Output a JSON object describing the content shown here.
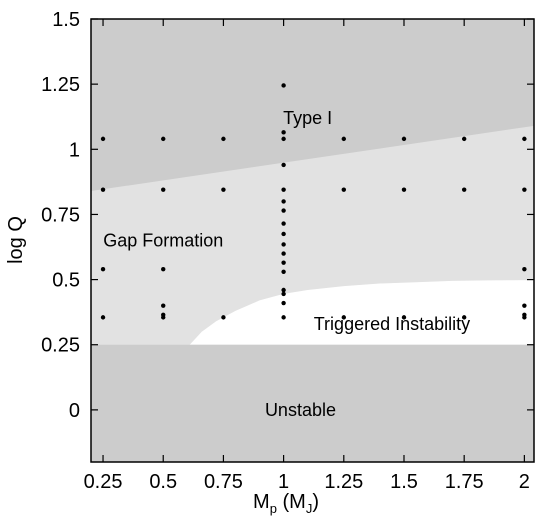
{
  "chart_data": {
    "type": "scatter",
    "title": "",
    "xlabel": {
      "main": "M",
      "sub": "p",
      "mid": " (M",
      "sub2": "J",
      "end": ")"
    },
    "ylabel": "log Q",
    "xlim": [
      0.2,
      2.04
    ],
    "ylim": [
      -0.2,
      1.5
    ],
    "xticks": [
      0.25,
      0.5,
      0.75,
      1,
      1.25,
      1.5,
      1.75,
      2
    ],
    "xtick_labels": [
      "0.25",
      "0.5",
      "0.75",
      "1",
      "1.25",
      "1.5",
      "1.75",
      "2"
    ],
    "yticks": [
      0,
      0.25,
      0.5,
      0.75,
      1,
      1.25,
      1.5
    ],
    "ytick_labels": [
      "0",
      "0.25",
      "0.5",
      "0.75",
      "1",
      "1.25",
      "1.5"
    ],
    "grid": false,
    "regions": [
      {
        "name": "Type I",
        "label_at": [
          1.1,
          1.12
        ],
        "color": "#cccccc"
      },
      {
        "name": "Gap Formation",
        "label_at": [
          0.5,
          0.65
        ],
        "color": "#e2e2e2"
      },
      {
        "name": "Triggered Instability",
        "label_at": [
          1.45,
          0.33
        ],
        "color": "#ffffff"
      },
      {
        "name": "Unstable",
        "label_at": [
          1.07,
          0.0
        ],
        "color": "#cccccc"
      }
    ],
    "boundaries": {
      "type_i_gap_line": {
        "x": [
          0.2,
          2.04
        ],
        "y": [
          0.84,
          1.09
        ]
      },
      "unstable_top": 0.25,
      "instability_curve": {
        "x": [
          0.61,
          0.66,
          0.72,
          0.8,
          0.9,
          1.0,
          1.1,
          1.25,
          1.4,
          1.55,
          1.7,
          1.85,
          2.04
        ],
        "y": [
          0.25,
          0.3,
          0.34,
          0.38,
          0.42,
          0.445,
          0.46,
          0.475,
          0.485,
          0.49,
          0.495,
          0.497,
          0.498
        ]
      }
    },
    "points": [
      {
        "x": 0.25,
        "y": 1.04
      },
      {
        "x": 0.5,
        "y": 1.04
      },
      {
        "x": 0.75,
        "y": 1.04
      },
      {
        "x": 1,
        "y": 1.04
      },
      {
        "x": 1.25,
        "y": 1.04
      },
      {
        "x": 1.5,
        "y": 1.04
      },
      {
        "x": 1.75,
        "y": 1.04
      },
      {
        "x": 2,
        "y": 1.04
      },
      {
        "x": 0.25,
        "y": 0.845
      },
      {
        "x": 0.5,
        "y": 0.845
      },
      {
        "x": 0.75,
        "y": 0.845
      },
      {
        "x": 1,
        "y": 0.845
      },
      {
        "x": 1.25,
        "y": 0.845
      },
      {
        "x": 1.5,
        "y": 0.845
      },
      {
        "x": 1.75,
        "y": 0.845
      },
      {
        "x": 2,
        "y": 0.845
      },
      {
        "x": 0.25,
        "y": 0.54
      },
      {
        "x": 0.5,
        "y": 0.54
      },
      {
        "x": 2,
        "y": 0.54
      },
      {
        "x": 0.5,
        "y": 0.4
      },
      {
        "x": 2,
        "y": 0.4
      },
      {
        "x": 0.25,
        "y": 0.355
      },
      {
        "x": 0.5,
        "y": 0.355
      },
      {
        "x": 0.75,
        "y": 0.355
      },
      {
        "x": 1,
        "y": 0.355
      },
      {
        "x": 1.25,
        "y": 0.355
      },
      {
        "x": 1.5,
        "y": 0.355
      },
      {
        "x": 1.75,
        "y": 0.355
      },
      {
        "x": 2,
        "y": 0.355
      },
      {
        "x": 0.5,
        "y": 0.365
      },
      {
        "x": 2,
        "y": 0.365
      },
      {
        "x": 1,
        "y": 1.245
      },
      {
        "x": 1,
        "y": 1.065
      },
      {
        "x": 1,
        "y": 0.94
      },
      {
        "x": 1,
        "y": 0.8
      },
      {
        "x": 1,
        "y": 0.765
      },
      {
        "x": 1,
        "y": 0.715
      },
      {
        "x": 1,
        "y": 0.675
      },
      {
        "x": 1,
        "y": 0.635
      },
      {
        "x": 1,
        "y": 0.6
      },
      {
        "x": 1,
        "y": 0.565
      },
      {
        "x": 1,
        "y": 0.53
      },
      {
        "x": 1,
        "y": 0.46
      },
      {
        "x": 1,
        "y": 0.445
      },
      {
        "x": 1,
        "y": 0.41
      }
    ]
  }
}
